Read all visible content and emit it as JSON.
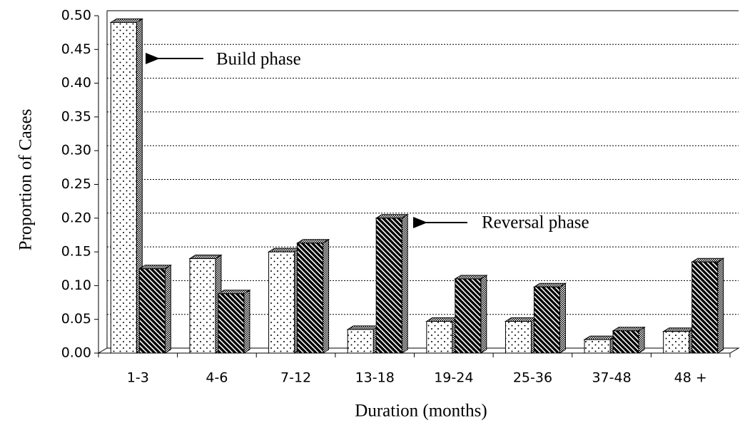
{
  "chart_data": {
    "type": "bar3d",
    "x_label": "Duration (months)",
    "y_label": "Proportion of Cases",
    "categories": [
      "1-3",
      "4-6",
      "7-12",
      "13-18",
      "19-24",
      "25-36",
      "37-48",
      "48 +"
    ],
    "series": [
      {
        "pattern": "dots",
        "color": "#000000",
        "values": [
          0.49,
          0.14,
          0.15,
          0.035,
          0.047,
          0.047,
          0.02,
          0.032
        ]
      },
      {
        "pattern": "hatch",
        "color": "#000000",
        "values": [
          0.125,
          0.088,
          0.163,
          0.2,
          0.11,
          0.098,
          0.033,
          0.135
        ]
      }
    ],
    "ylim": [
      0,
      0.5
    ],
    "yticks": [
      {
        "value": 0,
        "label": "0.00"
      },
      {
        "value": 0.05,
        "label": "0.05"
      },
      {
        "value": 0.1,
        "label": "0.10"
      },
      {
        "value": 0.15,
        "label": "0.15"
      },
      {
        "value": 0.2,
        "label": "0.20"
      },
      {
        "value": 0.25,
        "label": "0.25"
      },
      {
        "value": 0.3,
        "label": "0.30"
      },
      {
        "value": 0.35,
        "label": "0.35"
      },
      {
        "value": 0.4,
        "label": "0.40"
      },
      {
        "value": 0.45,
        "label": "0.45"
      },
      {
        "value": 0.5,
        "label": "0.50"
      }
    ],
    "grid": true,
    "annotations": [
      "Build phase",
      "Reversal phase"
    ]
  }
}
